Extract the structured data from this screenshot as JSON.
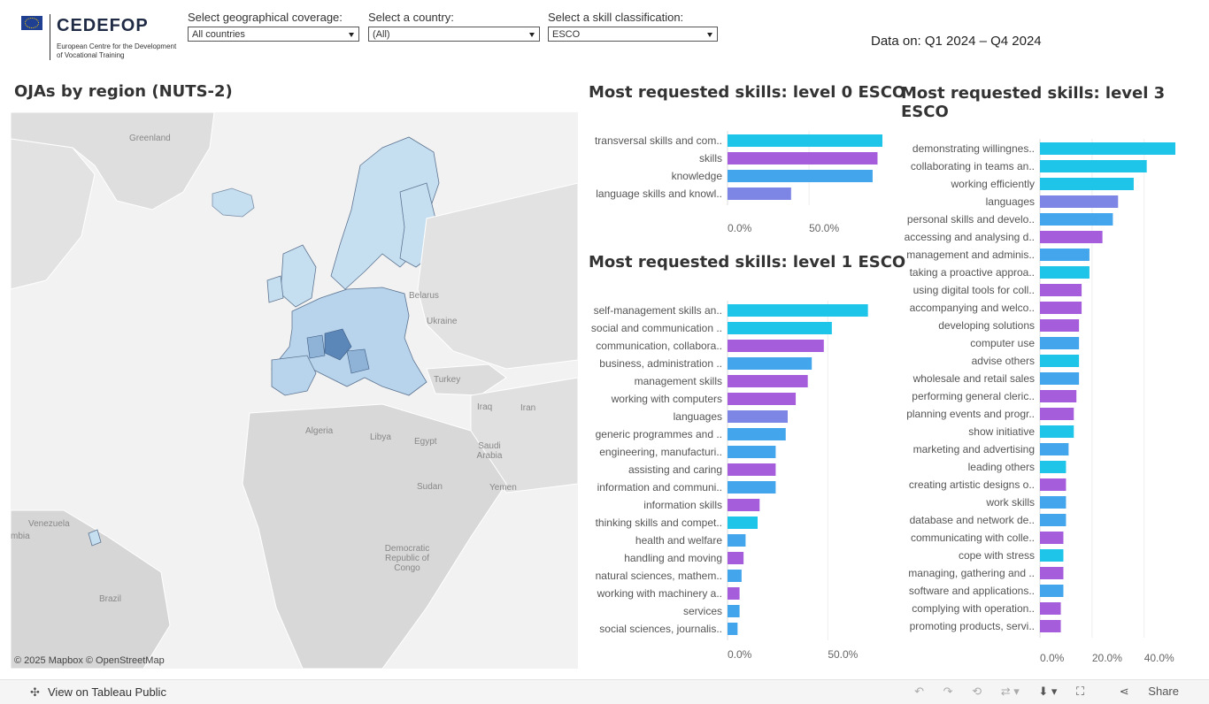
{
  "logo": {
    "name": "CEDEFOP",
    "subtitle": "European Centre for the Development of Vocational Training"
  },
  "filters": [
    {
      "label": "Select geographical coverage:",
      "value": "All countries"
    },
    {
      "label": "Select a country:",
      "value": "(All)"
    },
    {
      "label": "Select a skill classification:",
      "value": "ESCO"
    }
  ],
  "date_range": "Data on: Q1 2024 – Q4 2024",
  "map": {
    "title": "OJAs by region (NUTS-2)",
    "attribution": "© 2025 Mapbox  © OpenStreetMap",
    "labels": {
      "greenland": "Greenland",
      "belarus": "Belarus",
      "ukraine": "Ukraine",
      "turkey": "Turkey",
      "iraq": "Iraq",
      "iran": "Iran",
      "algeria": "Algeria",
      "libya": "Libya",
      "egypt": "Egypt",
      "saudi": "Saudi Arabia",
      "sudan": "Sudan",
      "yemen": "Yemen",
      "drc": "Democratic Republic of Congo",
      "venezuela": "Venezuela",
      "colombia": "mbia",
      "brazil": "Brazil"
    },
    "colors": {
      "land": "#dcdcdc",
      "water": "#f2f2f2",
      "eu_light": "#c6dff0",
      "eu_mid": "#8fb3d6",
      "eu_dark": "#5b86b8"
    }
  },
  "colors": {
    "cyan": "#1ec5e8",
    "blue": "#43a5ec",
    "purple": "#a65ddc",
    "indigo": "#7d86e4"
  },
  "chart_data": [
    {
      "type": "bar",
      "orientation": "horizontal",
      "title": "Most requested skills: level 0 ESCO",
      "categories": [
        "transversal skills and com..",
        "skills",
        "knowledge",
        "language skills and knowl.."
      ],
      "values": [
        95,
        92,
        89,
        39
      ],
      "colors": [
        "cyan",
        "purple",
        "blue",
        "indigo"
      ],
      "xlim": [
        0,
        95
      ],
      "ticks": [
        "0.0%",
        "50.0%"
      ]
    },
    {
      "type": "bar",
      "orientation": "horizontal",
      "title": "Most requested skills: level 1 ESCO",
      "categories": [
        "self-management skills an..",
        "social and communication ..",
        "communication, collabora..",
        "business, administration ..",
        "management skills",
        "working with computers",
        "languages",
        "generic programmes and ..",
        "engineering, manufacturi..",
        "assisting and caring",
        "information and communi..",
        "information skills",
        "thinking skills and compet..",
        "health and welfare",
        "handling and moving",
        "natural sciences, mathem..",
        "working with machinery a..",
        "services",
        "social sciences, journalis.."
      ],
      "values": [
        70,
        52,
        48,
        42,
        40,
        34,
        30,
        29,
        24,
        24,
        24,
        16,
        15,
        9,
        8,
        7,
        6,
        6,
        5
      ],
      "colors": [
        "cyan",
        "cyan",
        "purple",
        "blue",
        "purple",
        "purple",
        "indigo",
        "blue",
        "blue",
        "purple",
        "blue",
        "purple",
        "cyan",
        "blue",
        "purple",
        "blue",
        "purple",
        "blue",
        "blue"
      ],
      "xlim": [
        0,
        75
      ],
      "ticks": [
        "0.0%",
        "50.0%"
      ]
    },
    {
      "type": "bar",
      "orientation": "horizontal",
      "title": "Most requested skills: level 3 ESCO",
      "categories": [
        "demonstrating willingnes..",
        "collaborating in teams an..",
        "working efficiently",
        "languages",
        "personal skills and develo..",
        "accessing and analysing d..",
        "management and adminis..",
        "taking a proactive approa..",
        "using digital tools for coll..",
        "accompanying and welco..",
        "developing solutions",
        "computer use",
        "advise others",
        "wholesale and retail sales",
        "performing general cleric..",
        "planning events and progr..",
        "show initiative",
        "marketing and advertising",
        "leading others",
        "creating artistic designs o..",
        "work skills",
        "database and network de..",
        "communicating with colle..",
        "cope with stress",
        "managing, gathering and ..",
        "software and applications..",
        "complying with operation..",
        "promoting products, servi.."
      ],
      "values": [
        52,
        41,
        36,
        30,
        28,
        24,
        19,
        19,
        16,
        16,
        15,
        15,
        15,
        15,
        14,
        13,
        13,
        11,
        10,
        10,
        10,
        10,
        9,
        9,
        9,
        9,
        8,
        8
      ],
      "colors": [
        "cyan",
        "cyan",
        "cyan",
        "indigo",
        "blue",
        "purple",
        "blue",
        "cyan",
        "purple",
        "purple",
        "purple",
        "blue",
        "cyan",
        "blue",
        "purple",
        "purple",
        "cyan",
        "blue",
        "cyan",
        "purple",
        "blue",
        "blue",
        "purple",
        "cyan",
        "purple",
        "blue",
        "purple",
        "purple"
      ],
      "xlim": [
        0,
        52
      ],
      "ticks": [
        "0.0%",
        "20.0%",
        "40.0%"
      ],
      "tick_values": [
        0,
        20,
        40
      ]
    }
  ],
  "footer": {
    "view_label": "View on Tableau Public",
    "share_label": "Share"
  }
}
